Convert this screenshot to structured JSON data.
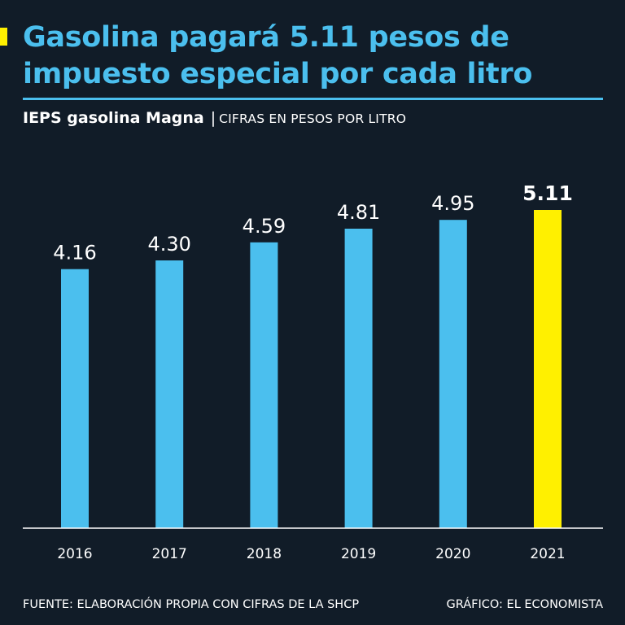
{
  "header": {
    "title": "Gasolina pagará 5.11 pesos de impuesto especial por cada litro",
    "subtitle": "IEPS gasolina Magna",
    "separator": "|",
    "units": "CIFRAS EN PESOS POR LITRO"
  },
  "chart_data": {
    "type": "bar",
    "title": "IEPS gasolina Magna",
    "ylabel": "CIFRAS EN PESOS POR LITRO",
    "xlabel": "",
    "categories": [
      "2016",
      "2017",
      "2018",
      "2019",
      "2020",
      "2021"
    ],
    "values": [
      4.16,
      4.3,
      4.59,
      4.81,
      4.95,
      5.11
    ],
    "value_labels": [
      "4.16",
      "4.30",
      "4.59",
      "4.81",
      "4.95",
      "5.11"
    ],
    "highlight_index": 5,
    "ylim": [
      0,
      5.11
    ],
    "grid": false,
    "colors": {
      "bar": "#4bbfee",
      "highlight": "#fff000",
      "axis": "#ffffff",
      "text": "#ffffff"
    }
  },
  "footer": {
    "source": "FUENTE: ELABORACIÓN PROPIA CON CIFRAS DE LA SHCP",
    "credit": "GRÁFICO: EL ECONOMISTA"
  },
  "colors": {
    "background": "#111c28",
    "accent": "#4bbfee",
    "highlight": "#fff000"
  }
}
